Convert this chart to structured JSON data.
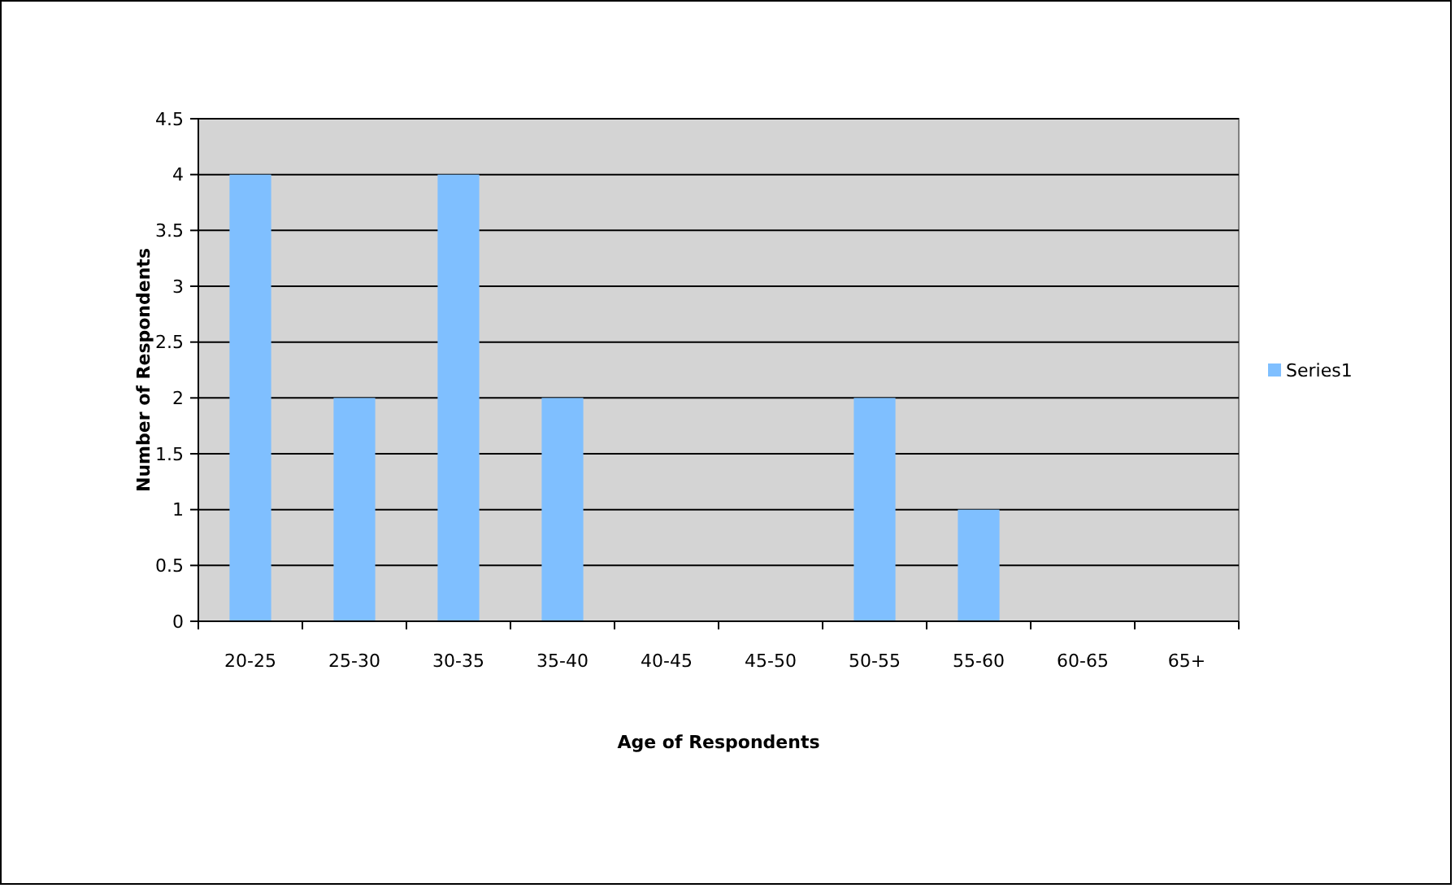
{
  "chart_data": {
    "type": "bar",
    "xlabel": "Age of Respondents",
    "ylabel": "Number of Respondents",
    "categories": [
      "20-25",
      "25-30",
      "30-35",
      "35-40",
      "40-45",
      "45-50",
      "50-55",
      "55-60",
      "60-65",
      "65+"
    ],
    "series": [
      {
        "name": "Series1",
        "color": "#7fbfff",
        "values": [
          4,
          2,
          4,
          2,
          0,
          0,
          2,
          1,
          0,
          0
        ]
      }
    ],
    "ylim": [
      0,
      4.5
    ],
    "yticks": [
      0,
      0.5,
      1,
      1.5,
      2,
      2.5,
      3,
      3.5,
      4,
      4.5
    ],
    "grid": "y",
    "legend": "right"
  }
}
